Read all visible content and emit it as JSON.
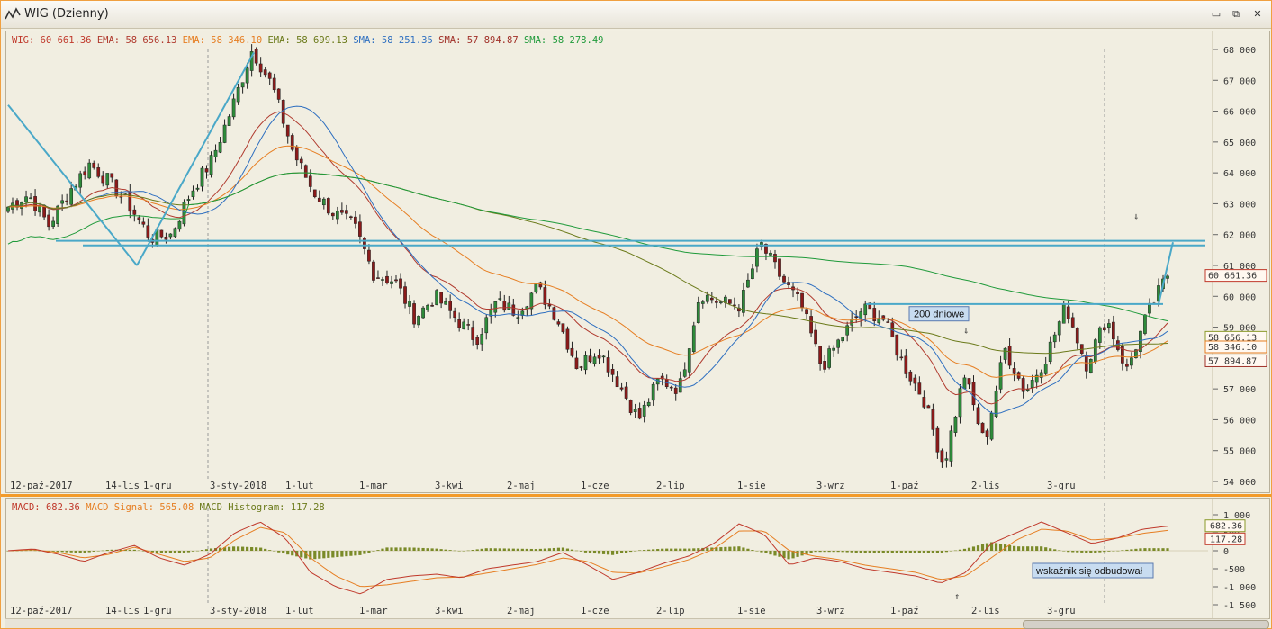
{
  "window": {
    "title": "WIG (Dzienny)",
    "controls": {
      "minimize": "▭",
      "restore": "⧉",
      "close": "✕"
    }
  },
  "legend_main": [
    {
      "name": "WIG:",
      "value": "60 661.36",
      "color": "#c0392b"
    },
    {
      "name": "EMA:",
      "value": "58 656.13",
      "color": "#b03a2e"
    },
    {
      "name": "EMA:",
      "value": "58 346.10",
      "color": "#e67e22"
    },
    {
      "name": "EMA:",
      "value": "58 699.13",
      "color": "#6b7a1a"
    },
    {
      "name": "SMA:",
      "value": "58 251.35",
      "color": "#2e6fc0"
    },
    {
      "name": "SMA:",
      "value": "57 894.87",
      "color": "#a03028"
    },
    {
      "name": "SMA:",
      "value": "58 278.49",
      "color": "#1f9a3a"
    }
  ],
  "legend_macd": [
    {
      "name": "MACD:",
      "value": "682.36",
      "color": "#c0392b"
    },
    {
      "name": "MACD Signal:",
      "value": "565.08",
      "color": "#e67e22"
    },
    {
      "name": "MACD Histogram:",
      "value": "117.28",
      "color": "#6b7a1a"
    }
  ],
  "price_tags": [
    {
      "value": "60 661.36",
      "color": "#c0392b"
    },
    {
      "value": "58 656.13",
      "color": "#8a9a2a"
    },
    {
      "value": "58 346.10",
      "color": "#e67e22"
    },
    {
      "value": "57 894.87",
      "color": "#a03028"
    }
  ],
  "macd_tags": [
    {
      "value": "682.36",
      "color": "#8a9a2a"
    },
    {
      "value": "117.28",
      "color": "#c0392b"
    }
  ],
  "annotations": {
    "ma200": "200 dniowe",
    "macd_note": "wskaźnik się odbudował"
  },
  "chart_data": [
    {
      "type": "candlestick",
      "title": "WIG (Dzienny)",
      "x_ticks": [
        "12-paź-2017",
        "14-lis",
        "1-gru",
        "3-sty-2018",
        "1-lut",
        "1-mar",
        "3-kwi",
        "2-maj",
        "1-cze",
        "2-lip",
        "1-sie",
        "3-wrz",
        "1-paź",
        "2-lis",
        "3-gru"
      ],
      "y_ticks": [
        "68 000",
        "67 000",
        "66 000",
        "65 000",
        "64 000",
        "63 000",
        "62 000",
        "61 000",
        "60 000",
        "59 000",
        "58 000",
        "57 000",
        "56 000",
        "55 000",
        "54 000"
      ],
      "ylim": [
        54000,
        68000
      ],
      "close_path": [
        62900,
        63300,
        62300,
        63400,
        64300,
        63700,
        62900,
        61900,
        62000,
        63400,
        64400,
        66100,
        68000,
        66800,
        64700,
        63400,
        62700,
        62300,
        60700,
        60500,
        59300,
        60000,
        59300,
        58600,
        59800,
        59500,
        60300,
        59300,
        57700,
        58300,
        57200,
        56000,
        57300,
        57000,
        60100,
        59800,
        59700,
        61700,
        60600,
        59700,
        57700,
        58700,
        59600,
        59300,
        57800,
        56700,
        54500,
        57500,
        55200,
        58300,
        56900,
        58000,
        59700,
        57800,
        59300,
        57600,
        59400,
        60700
      ]
    },
    {
      "type": "line",
      "title": "MACD",
      "y_ticks": [
        "1 000",
        "500",
        "0",
        "-500",
        "-1 000",
        "-1 500"
      ],
      "ylim": [
        -1500,
        1000
      ],
      "series": [
        {
          "name": "MACD",
          "values": [
            0,
            50,
            -100,
            -300,
            -50,
            150,
            -200,
            -400,
            -100,
            500,
            800,
            350,
            -600,
            -1000,
            -1200,
            -800,
            -700,
            -650,
            -750,
            -500,
            -400,
            -300,
            -50,
            -400,
            -800,
            -600,
            -350,
            -150,
            200,
            750,
            450,
            -400,
            -200,
            -300,
            -500,
            -600,
            -700,
            -900,
            -600,
            200,
            500,
            800,
            500,
            200,
            350,
            600,
            682
          ]
        },
        {
          "name": "MACD Signal",
          "values": [
            0,
            30,
            -50,
            -200,
            -100,
            100,
            -100,
            -300,
            -200,
            300,
            650,
            500,
            -200,
            -700,
            -1000,
            -950,
            -850,
            -750,
            -730,
            -620,
            -500,
            -380,
            -200,
            -300,
            -600,
            -620,
            -450,
            -250,
            50,
            550,
            550,
            0,
            -150,
            -250,
            -400,
            -500,
            -600,
            -800,
            -700,
            -200,
            300,
            600,
            550,
            300,
            350,
            480,
            565
          ]
        }
      ]
    }
  ]
}
